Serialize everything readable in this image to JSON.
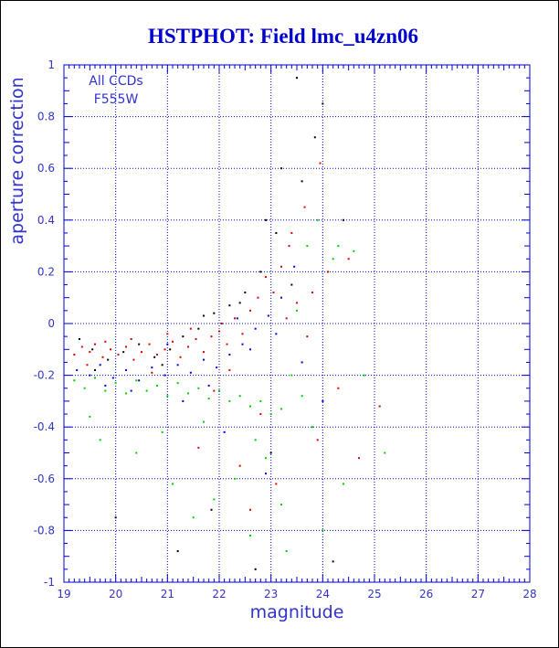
{
  "chart_data": {
    "type": "scatter",
    "title": "HSTPHOT: Field lmc_u4zn06",
    "xlabel": "magnitude",
    "ylabel": "aperture correction",
    "annotations": [
      "All CCDs",
      "F555W"
    ],
    "xlim": [
      19,
      28
    ],
    "ylim": [
      -1,
      1
    ],
    "xticks": [
      19,
      20,
      21,
      22,
      23,
      24,
      25,
      26,
      27,
      28
    ],
    "yticks": [
      -1,
      -0.8,
      -0.6,
      -0.4,
      -0.2,
      0,
      0.2,
      0.4,
      0.6,
      0.8,
      1
    ],
    "grid": true,
    "colors": {
      "axis": "#0000c8",
      "grid": "#0000c8",
      "title": "#0000cc",
      "label": "#3333cc"
    },
    "series": [
      {
        "color": "#e00000",
        "points": [
          [
            19.2,
            -0.12
          ],
          [
            19.35,
            -0.09
          ],
          [
            19.5,
            -0.11
          ],
          [
            19.6,
            -0.08
          ],
          [
            19.75,
            -0.13
          ],
          [
            19.9,
            -0.1
          ],
          [
            20.05,
            -0.12
          ],
          [
            20.2,
            -0.09
          ],
          [
            20.35,
            -0.14
          ],
          [
            20.5,
            -0.11
          ],
          [
            20.65,
            -0.08
          ],
          [
            20.8,
            -0.12
          ],
          [
            20.95,
            -0.1
          ],
          [
            21.1,
            -0.07
          ],
          [
            21.25,
            -0.13
          ],
          [
            21.4,
            -0.09
          ],
          [
            21.55,
            -0.06
          ],
          [
            21.7,
            -0.11
          ],
          [
            21.85,
            -0.05
          ],
          [
            22.0,
            -0.03
          ],
          [
            22.15,
            -0.08
          ],
          [
            22.3,
            0.02
          ],
          [
            22.45,
            -0.04
          ],
          [
            22.6,
            0.05
          ],
          [
            22.75,
            0.1
          ],
          [
            22.9,
            0.18
          ],
          [
            23.05,
            0.12
          ],
          [
            23.2,
            0.22
          ],
          [
            23.35,
            0.3
          ],
          [
            23.5,
            0.08
          ],
          [
            23.65,
            0.45
          ],
          [
            23.8,
            0.12
          ],
          [
            23.95,
            0.62
          ],
          [
            24.1,
            0.2
          ],
          [
            23.3,
            0.02
          ],
          [
            23.7,
            -0.05
          ],
          [
            22.2,
            -0.18
          ],
          [
            21.6,
            -0.48
          ],
          [
            22.4,
            -0.55
          ],
          [
            23.1,
            -0.62
          ],
          [
            22.8,
            -0.35
          ],
          [
            21.9,
            -0.26
          ],
          [
            20.7,
            -0.19
          ],
          [
            19.45,
            -0.16
          ],
          [
            19.8,
            -0.07
          ],
          [
            20.3,
            -0.06
          ],
          [
            21.0,
            -0.04
          ],
          [
            21.45,
            -0.02
          ],
          [
            22.05,
            0.0
          ],
          [
            23.4,
            0.35
          ],
          [
            24.3,
            -0.25
          ],
          [
            23.9,
            -0.45
          ],
          [
            22.6,
            -0.72
          ],
          [
            24.5,
            0.25
          ],
          [
            25.1,
            -0.32
          ],
          [
            24.7,
            -0.52
          ]
        ]
      },
      {
        "color": "#000000",
        "points": [
          [
            19.3,
            -0.06
          ],
          [
            19.55,
            -0.1
          ],
          [
            19.85,
            -0.14
          ],
          [
            20.15,
            -0.11
          ],
          [
            20.45,
            -0.08
          ],
          [
            20.75,
            -0.13
          ],
          [
            21.05,
            -0.1
          ],
          [
            21.3,
            -0.05
          ],
          [
            21.6,
            -0.02
          ],
          [
            21.9,
            0.04
          ],
          [
            22.2,
            0.07
          ],
          [
            22.5,
            0.12
          ],
          [
            22.8,
            0.2
          ],
          [
            23.1,
            0.35
          ],
          [
            23.4,
            0.15
          ],
          [
            23.6,
            0.55
          ],
          [
            23.85,
            0.72
          ],
          [
            24.0,
            0.85
          ],
          [
            23.5,
            0.95
          ],
          [
            22.4,
            0.08
          ],
          [
            21.7,
            0.03
          ],
          [
            22.9,
            0.4
          ],
          [
            23.2,
            0.6
          ],
          [
            24.4,
            0.4
          ],
          [
            21.2,
            -0.88
          ],
          [
            21.85,
            -0.72
          ],
          [
            20.0,
            -0.75
          ],
          [
            22.7,
            -0.95
          ],
          [
            23.0,
            -0.5
          ],
          [
            24.2,
            -0.92
          ],
          [
            19.6,
            -0.18
          ],
          [
            20.9,
            -0.16
          ]
        ]
      },
      {
        "color": "#0000e0",
        "points": [
          [
            19.25,
            -0.18
          ],
          [
            19.5,
            -0.2
          ],
          [
            19.7,
            -0.16
          ],
          [
            19.95,
            -0.21
          ],
          [
            20.2,
            -0.18
          ],
          [
            20.45,
            -0.22
          ],
          [
            20.7,
            -0.17
          ],
          [
            20.95,
            -0.2
          ],
          [
            21.2,
            -0.16
          ],
          [
            21.45,
            -0.19
          ],
          [
            21.7,
            -0.14
          ],
          [
            21.95,
            -0.17
          ],
          [
            22.2,
            -0.12
          ],
          [
            22.45,
            -0.08
          ],
          [
            22.7,
            -0.02
          ],
          [
            22.95,
            0.03
          ],
          [
            23.2,
            0.1
          ],
          [
            23.45,
            0.22
          ],
          [
            23.1,
            -0.04
          ],
          [
            22.6,
            -0.1
          ],
          [
            21.8,
            -0.24
          ],
          [
            21.3,
            -0.3
          ],
          [
            22.1,
            -0.42
          ],
          [
            22.9,
            -0.58
          ],
          [
            20.3,
            -0.26
          ],
          [
            19.8,
            -0.24
          ],
          [
            21.0,
            -0.08
          ],
          [
            22.35,
            0.02
          ],
          [
            23.6,
            -0.15
          ],
          [
            24.0,
            -0.3
          ]
        ]
      },
      {
        "color": "#00d000",
        "points": [
          [
            19.2,
            -0.22
          ],
          [
            19.4,
            -0.25
          ],
          [
            19.6,
            -0.21
          ],
          [
            19.8,
            -0.26
          ],
          [
            20.0,
            -0.23
          ],
          [
            20.2,
            -0.27
          ],
          [
            20.4,
            -0.22
          ],
          [
            20.6,
            -0.26
          ],
          [
            20.8,
            -0.24
          ],
          [
            21.0,
            -0.28
          ],
          [
            21.2,
            -0.23
          ],
          [
            21.4,
            -0.27
          ],
          [
            21.6,
            -0.25
          ],
          [
            21.8,
            -0.29
          ],
          [
            22.0,
            -0.26
          ],
          [
            22.2,
            -0.3
          ],
          [
            22.4,
            -0.28
          ],
          [
            22.6,
            -0.32
          ],
          [
            22.8,
            -0.3
          ],
          [
            23.0,
            -0.35
          ],
          [
            23.2,
            -0.33
          ],
          [
            23.4,
            -0.2
          ],
          [
            23.6,
            -0.28
          ],
          [
            23.8,
            -0.4
          ],
          [
            22.9,
            -0.52
          ],
          [
            22.3,
            -0.6
          ],
          [
            21.9,
            -0.68
          ],
          [
            21.5,
            -0.75
          ],
          [
            22.6,
            -0.82
          ],
          [
            23.2,
            -0.7
          ],
          [
            23.5,
            0.05
          ],
          [
            23.7,
            0.3
          ],
          [
            23.9,
            0.4
          ],
          [
            24.2,
            0.25
          ],
          [
            24.6,
            0.28
          ],
          [
            24.3,
            0.3
          ],
          [
            19.5,
            -0.36
          ],
          [
            19.7,
            -0.45
          ],
          [
            20.4,
            -0.5
          ],
          [
            21.1,
            -0.62
          ],
          [
            24.0,
            -0.8
          ],
          [
            23.3,
            -0.88
          ],
          [
            22.7,
            -0.45
          ],
          [
            21.7,
            -0.38
          ],
          [
            20.9,
            -0.42
          ],
          [
            24.8,
            -0.2
          ],
          [
            25.2,
            -0.5
          ],
          [
            24.4,
            -0.62
          ]
        ]
      }
    ]
  }
}
